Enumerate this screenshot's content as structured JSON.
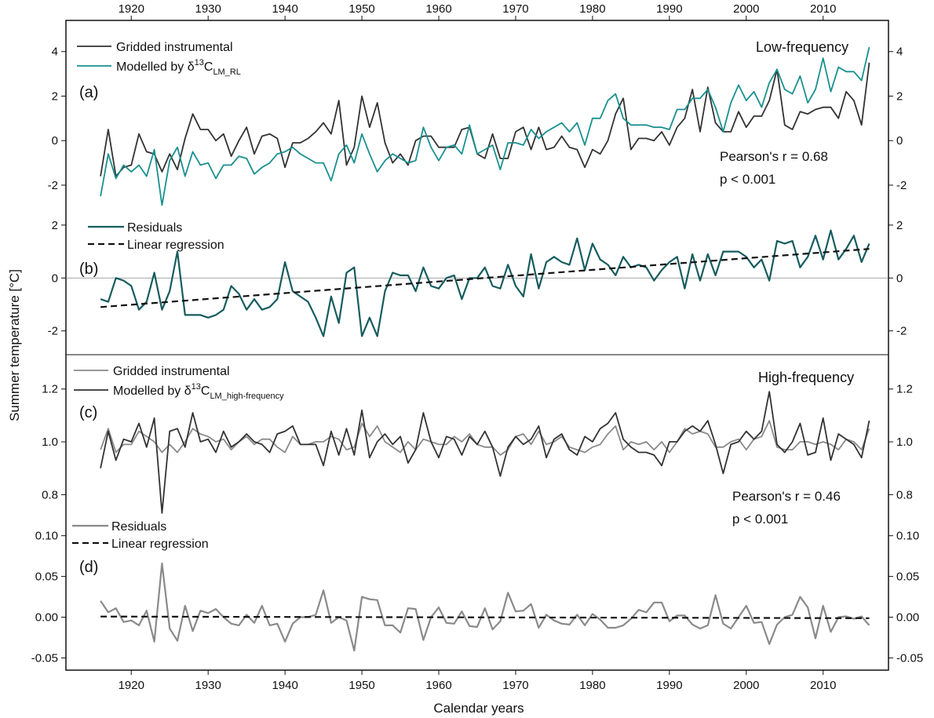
{
  "ylabel": "Summer temperature [°C]",
  "xlabel": "Calendar years",
  "x_ticks": [
    1920,
    1930,
    1940,
    1950,
    1960,
    1970,
    1980,
    1990,
    2000,
    2010
  ],
  "colors": {
    "instrumental_dark": "#333333",
    "teal": "#1a9090",
    "residual_dark": "#175c5f",
    "gray": "#8a8a8a",
    "axis": "#111111"
  },
  "chart_data": [
    {
      "panel": "(a)",
      "type": "line",
      "title": "Low-frequency",
      "ylim": [
        -3.2,
        5.4
      ],
      "yticks": [
        -2,
        0,
        2,
        4
      ],
      "stats": {
        "r": "Pearson's r = 0.68",
        "p": "p < 0.001"
      },
      "legend": {
        "instrumental": "Gridded instrumental",
        "modelled_prefix": "Modelled by δ",
        "modelled_sup": "13",
        "modelled_base": "C",
        "modelled_sub": "LM_RL"
      },
      "x": [
        1916,
        1917,
        1918,
        1919,
        1920,
        1921,
        1922,
        1923,
        1924,
        1925,
        1926,
        1927,
        1928,
        1929,
        1930,
        1931,
        1932,
        1933,
        1934,
        1935,
        1936,
        1937,
        1938,
        1939,
        1940,
        1941,
        1942,
        1943,
        1944,
        1945,
        1946,
        1947,
        1948,
        1949,
        1950,
        1951,
        1952,
        1953,
        1954,
        1955,
        1956,
        1957,
        1958,
        1959,
        1960,
        1961,
        1962,
        1963,
        1964,
        1965,
        1966,
        1967,
        1968,
        1969,
        1970,
        1971,
        1972,
        1973,
        1974,
        1975,
        1976,
        1977,
        1978,
        1979,
        1980,
        1981,
        1982,
        1983,
        1984,
        1985,
        1986,
        1987,
        1988,
        1989,
        1990,
        1991,
        1992,
        1993,
        1994,
        1995,
        1996,
        1997,
        1998,
        1999,
        2000,
        2001,
        2002,
        2003,
        2004,
        2005,
        2006,
        2007,
        2008,
        2009,
        2010,
        2011,
        2012,
        2013,
        2014,
        2015,
        2016
      ],
      "series": [
        {
          "name": "Gridded instrumental",
          "values": [
            -1.6,
            0.5,
            -1.6,
            -1.2,
            -1.1,
            0.3,
            -0.5,
            -0.6,
            -1.4,
            -0.6,
            -1.3,
            0.1,
            1.2,
            0.5,
            0.5,
            0.0,
            0.3,
            -0.7,
            0.0,
            0.6,
            -0.6,
            0.2,
            0.3,
            0.1,
            -1.2,
            -0.1,
            -0.1,
            0.1,
            0.4,
            0.8,
            0.3,
            1.8,
            -1.1,
            -0.3,
            2.0,
            0.6,
            1.7,
            -0.1,
            -1.0,
            -0.6,
            -1.1,
            0.0,
            0.2,
            0.2,
            -0.3,
            -0.3,
            -0.3,
            0.5,
            0.6,
            -0.6,
            -0.8,
            0.3,
            -0.8,
            -0.8,
            0.4,
            0.6,
            -0.4,
            0.6,
            -0.4,
            -0.3,
            0.2,
            -0.3,
            -0.4,
            -1.2,
            -0.4,
            -0.6,
            0.0,
            1.2,
            1.9,
            -0.4,
            0.1,
            0.1,
            0.0,
            0.4,
            -0.2,
            0.6,
            1.0,
            2.3,
            0.4,
            2.4,
            0.8,
            0.4,
            0.4,
            1.3,
            0.6,
            1.1,
            1.1,
            1.8,
            3.2,
            0.7,
            0.5,
            1.3,
            1.2,
            1.4,
            1.5,
            1.5,
            1.0,
            2.2,
            1.8,
            0.7,
            3.5
          ]
        },
        {
          "name": "Modelled by δ13C_LM_RL",
          "values": [
            -2.5,
            -0.6,
            -1.7,
            -1.1,
            -1.4,
            -1.1,
            -1.6,
            -0.4,
            -2.9,
            -0.9,
            -0.3,
            -1.6,
            -0.5,
            -1.1,
            -1.0,
            -1.7,
            -1.1,
            -1.1,
            -0.7,
            -0.8,
            -1.5,
            -1.2,
            -1.0,
            -0.6,
            -0.5,
            -0.3,
            -0.6,
            -0.8,
            -1.0,
            -1.0,
            -1.8,
            -0.6,
            -0.2,
            -1.0,
            0.3,
            -0.6,
            -1.4,
            -0.9,
            -0.6,
            -0.8,
            -1.0,
            -0.9,
            0.6,
            -0.3,
            -0.9,
            -0.3,
            -0.2,
            -0.6,
            0.7,
            -0.6,
            -0.4,
            -0.2,
            -1.3,
            -0.1,
            -0.1,
            -0.2,
            0.5,
            0.1,
            0.4,
            0.6,
            0.8,
            0.4,
            0.8,
            -0.2,
            1.0,
            1.0,
            1.8,
            2.1,
            1.0,
            0.7,
            0.7,
            0.7,
            0.6,
            0.6,
            0.5,
            1.4,
            1.4,
            1.9,
            1.9,
            2.3,
            1.5,
            0.4,
            1.7,
            2.5,
            1.8,
            2.2,
            1.5,
            2.6,
            3.2,
            2.3,
            2.1,
            2.9,
            1.7,
            2.3,
            3.7,
            2.2,
            3.3,
            3.1,
            3.1,
            2.7,
            4.2
          ]
        }
      ]
    },
    {
      "panel": "(b)",
      "type": "line",
      "ylim": [
        -2.9,
        2.5
      ],
      "yticks": [
        -2,
        0,
        2
      ],
      "legend": {
        "residuals": "Residuals",
        "regression": "Linear regression"
      },
      "x": [
        1916,
        1917,
        1918,
        1919,
        1920,
        1921,
        1922,
        1923,
        1924,
        1925,
        1926,
        1927,
        1928,
        1929,
        1930,
        1931,
        1932,
        1933,
        1934,
        1935,
        1936,
        1937,
        1938,
        1939,
        1940,
        1941,
        1942,
        1943,
        1944,
        1945,
        1946,
        1947,
        1948,
        1949,
        1950,
        1951,
        1952,
        1953,
        1954,
        1955,
        1956,
        1957,
        1958,
        1959,
        1960,
        1961,
        1962,
        1963,
        1964,
        1965,
        1966,
        1967,
        1968,
        1969,
        1970,
        1971,
        1972,
        1973,
        1974,
        1975,
        1976,
        1977,
        1978,
        1979,
        1980,
        1981,
        1982,
        1983,
        1984,
        1985,
        1986,
        1987,
        1988,
        1989,
        1990,
        1991,
        1992,
        1993,
        1994,
        1995,
        1996,
        1997,
        1998,
        1999,
        2000,
        2001,
        2002,
        2003,
        2004,
        2005,
        2006,
        2007,
        2008,
        2009,
        2010,
        2011,
        2012,
        2013,
        2014,
        2015,
        2016
      ],
      "series": [
        {
          "name": "Residuals",
          "values": [
            -0.8,
            -0.9,
            0.0,
            -0.1,
            -0.3,
            -1.2,
            -0.9,
            0.2,
            -1.2,
            -0.5,
            1.0,
            -1.4,
            -1.4,
            -1.4,
            -1.5,
            -1.4,
            -1.2,
            -0.3,
            -0.6,
            -1.2,
            -0.8,
            -1.2,
            -1.1,
            -0.8,
            0.6,
            -0.5,
            -0.7,
            -0.9,
            -1.5,
            -2.2,
            -0.7,
            -1.7,
            0.2,
            0.4,
            -2.2,
            -1.5,
            -2.2,
            -0.5,
            0.2,
            0.1,
            0.1,
            -0.5,
            0.4,
            -0.3,
            -0.4,
            0.0,
            0.1,
            -0.8,
            0.0,
            0.0,
            0.4,
            -0.3,
            -0.4,
            0.5,
            -0.3,
            -0.7,
            0.9,
            -0.4,
            0.6,
            0.8,
            0.6,
            0.5,
            1.5,
            0.3,
            1.3,
            0.7,
            0.5,
            0.1,
            0.8,
            0.4,
            0.5,
            0.4,
            -0.1,
            0.3,
            0.6,
            0.8,
            -0.4,
            0.9,
            -0.1,
            0.9,
            0.1,
            1.0,
            1.0,
            1.0,
            0.8,
            0.4,
            0.7,
            -0.1,
            1.4,
            1.3,
            1.4,
            0.4,
            0.8,
            1.6,
            0.7,
            1.8,
            0.7,
            1.1,
            1.6,
            0.6,
            1.3
          ]
        },
        {
          "name": "Linear regression",
          "endpoints": {
            "x": [
              1916,
              2016
            ],
            "y": [
              -1.1,
              1.1
            ]
          }
        }
      ]
    },
    {
      "panel": "(c)",
      "type": "line",
      "title": "High-frequency",
      "ylim": [
        0.7,
        1.33
      ],
      "yticks": [
        0.8,
        1.0,
        1.2
      ],
      "stats": {
        "r": "Pearson's r = 0.46",
        "p": "p < 0.001"
      },
      "legend": {
        "instrumental": "Gridded instrumental",
        "modelled_prefix": "Modelled by δ",
        "modelled_sup": "13",
        "modelled_base": "C",
        "modelled_sub": "LM_high-frequency"
      },
      "x": [
        1916,
        1917,
        1918,
        1919,
        1920,
        1921,
        1922,
        1923,
        1924,
        1925,
        1926,
        1927,
        1928,
        1929,
        1930,
        1931,
        1932,
        1933,
        1934,
        1935,
        1936,
        1937,
        1938,
        1939,
        1940,
        1941,
        1942,
        1943,
        1944,
        1945,
        1946,
        1947,
        1948,
        1949,
        1950,
        1951,
        1952,
        1953,
        1954,
        1955,
        1956,
        1957,
        1958,
        1959,
        1960,
        1961,
        1962,
        1963,
        1964,
        1965,
        1966,
        1967,
        1968,
        1969,
        1970,
        1971,
        1972,
        1973,
        1974,
        1975,
        1976,
        1977,
        1978,
        1979,
        1980,
        1981,
        1982,
        1983,
        1984,
        1985,
        1986,
        1987,
        1988,
        1989,
        1990,
        1991,
        1992,
        1993,
        1994,
        1995,
        1996,
        1997,
        1998,
        1999,
        2000,
        2001,
        2002,
        2003,
        2004,
        2005,
        2006,
        2007,
        2008,
        2009,
        2010,
        2011,
        2012,
        2013,
        2014,
        2015,
        2016
      ],
      "series": [
        {
          "name": "Gridded instrumental",
          "values": [
            0.97,
            1.05,
            0.96,
            0.99,
            0.99,
            1.04,
            1.02,
            1.0,
            0.96,
            0.99,
            0.96,
            1.0,
            1.05,
            1.03,
            1.02,
            1.0,
            1.01,
            0.97,
            1.0,
            1.02,
            0.99,
            1.01,
            1.01,
            0.98,
            0.96,
            1.02,
            0.99,
            0.99,
            1.0,
            1.0,
            1.02,
            1.01,
            0.97,
            0.98,
            1.07,
            1.02,
            1.06,
            1.0,
            0.98,
            0.96,
            1.0,
            0.97,
            1.01,
            1.0,
            0.99,
            0.99,
            1.02,
            1.0,
            1.03,
            0.99,
            0.98,
            0.98,
            0.95,
            0.97,
            1.02,
            1.03,
            0.99,
            1.04,
            0.99,
            1.0,
            1.02,
            0.98,
            0.97,
            0.96,
            0.98,
            0.99,
            1.03,
            1.06,
            0.97,
            1.0,
            0.99,
            1.0,
            0.97,
            1.0,
            0.96,
            1.0,
            1.05,
            1.03,
            1.04,
            1.03,
            0.98,
            0.98,
            1.0,
            1.01,
            0.97,
            1.01,
            1.02,
            1.08,
            0.98,
            0.97,
            0.97,
            1.0,
            1.0,
            0.99,
            1.0,
            0.99,
            0.97,
            1.01,
            1.0,
            0.97,
            1.05
          ]
        },
        {
          "name": "Modelled by δ13C_LM_high-frequency",
          "values": [
            0.9,
            1.04,
            0.93,
            1.01,
            1.0,
            1.07,
            0.98,
            1.09,
            0.73,
            1.04,
            1.05,
            0.98,
            1.11,
            1.0,
            1.01,
            0.96,
            1.04,
            0.98,
            1.0,
            1.03,
            1.0,
            0.99,
            0.96,
            1.03,
            1.04,
            1.06,
            0.99,
            0.99,
            0.99,
            0.91,
            1.04,
            0.95,
            1.05,
            0.95,
            1.12,
            0.94,
            1.0,
            1.03,
            0.99,
            1.02,
            0.92,
            0.97,
            1.11,
            1.0,
            0.94,
            1.02,
            1.01,
            0.95,
            1.02,
            0.99,
            1.04,
            0.98,
            0.87,
            0.98,
            1.02,
            0.99,
            1.01,
            1.06,
            0.94,
            1.01,
            1.03,
            0.97,
            0.95,
            1.02,
            1.0,
            1.05,
            1.07,
            1.11,
            1.01,
            0.98,
            0.96,
            0.96,
            0.95,
            0.91,
            1.0,
            1.0,
            1.04,
            1.06,
            1.04,
            1.08,
            0.99,
            0.88,
            0.99,
            1.0,
            1.04,
            1.01,
            1.04,
            1.19,
            0.99,
            0.96,
            1.0,
            1.07,
            0.95,
            0.96,
            1.09,
            0.93,
            1.03,
            1.01,
            0.99,
            0.94,
            1.08
          ]
        }
      ]
    },
    {
      "panel": "(d)",
      "type": "line",
      "ylim": [
        -0.065,
        0.118
      ],
      "yticks": [
        -0.05,
        0.0,
        0.05,
        0.1
      ],
      "legend": {
        "residuals": "Residuals",
        "regression": "Linear regression"
      },
      "x": [
        1916,
        1917,
        1918,
        1919,
        1920,
        1921,
        1922,
        1923,
        1924,
        1925,
        1926,
        1927,
        1928,
        1929,
        1930,
        1931,
        1932,
        1933,
        1934,
        1935,
        1936,
        1937,
        1938,
        1939,
        1940,
        1941,
        1942,
        1943,
        1944,
        1945,
        1946,
        1947,
        1948,
        1949,
        1950,
        1951,
        1952,
        1953,
        1954,
        1955,
        1956,
        1957,
        1958,
        1959,
        1960,
        1961,
        1962,
        1963,
        1964,
        1965,
        1966,
        1967,
        1968,
        1969,
        1970,
        1971,
        1972,
        1973,
        1974,
        1975,
        1976,
        1977,
        1978,
        1979,
        1980,
        1981,
        1982,
        1983,
        1984,
        1985,
        1986,
        1987,
        1988,
        1989,
        1990,
        1991,
        1992,
        1993,
        1994,
        1995,
        1996,
        1997,
        1998,
        1999,
        2000,
        2001,
        2002,
        2003,
        2004,
        2005,
        2006,
        2007,
        2008,
        2009,
        2010,
        2011,
        2012,
        2013,
        2014,
        2015,
        2016
      ],
      "series": [
        {
          "name": "Residuals",
          "values": [
            0.02,
            0.006,
            0.011,
            -0.006,
            -0.004,
            -0.01,
            0.008,
            -0.03,
            0.066,
            -0.014,
            -0.029,
            0.014,
            -0.017,
            0.008,
            0.005,
            0.01,
            0.0,
            -0.008,
            -0.01,
            0.003,
            -0.007,
            0.014,
            -0.01,
            -0.008,
            -0.03,
            -0.008,
            0.0,
            0.0,
            0.003,
            0.033,
            -0.007,
            0.0,
            -0.004,
            -0.041,
            0.025,
            0.022,
            0.021,
            -0.01,
            -0.01,
            -0.019,
            0.011,
            0.01,
            -0.028,
            0.0,
            0.012,
            -0.007,
            -0.008,
            0.007,
            -0.011,
            -0.012,
            0.011,
            -0.015,
            -0.005,
            0.03,
            0.007,
            0.008,
            0.016,
            -0.013,
            0.003,
            -0.004,
            -0.008,
            -0.009,
            0.003,
            -0.01,
            0.004,
            -0.003,
            -0.013,
            -0.013,
            -0.01,
            -0.002,
            0.009,
            0.006,
            0.018,
            0.018,
            -0.005,
            0.002,
            0.002,
            -0.009,
            -0.014,
            -0.01,
            0.027,
            -0.008,
            -0.014,
            0.0,
            0.014,
            -0.007,
            -0.006,
            -0.033,
            -0.009,
            0.0,
            0.003,
            0.025,
            0.012,
            -0.026,
            0.014,
            -0.018,
            0.0,
            0.001,
            -0.002,
            0.001,
            -0.01
          ]
        },
        {
          "name": "Linear regression",
          "endpoints": {
            "x": [
              1916,
              2016
            ],
            "y": [
              0.0008,
              -0.0012
            ]
          }
        }
      ]
    }
  ]
}
